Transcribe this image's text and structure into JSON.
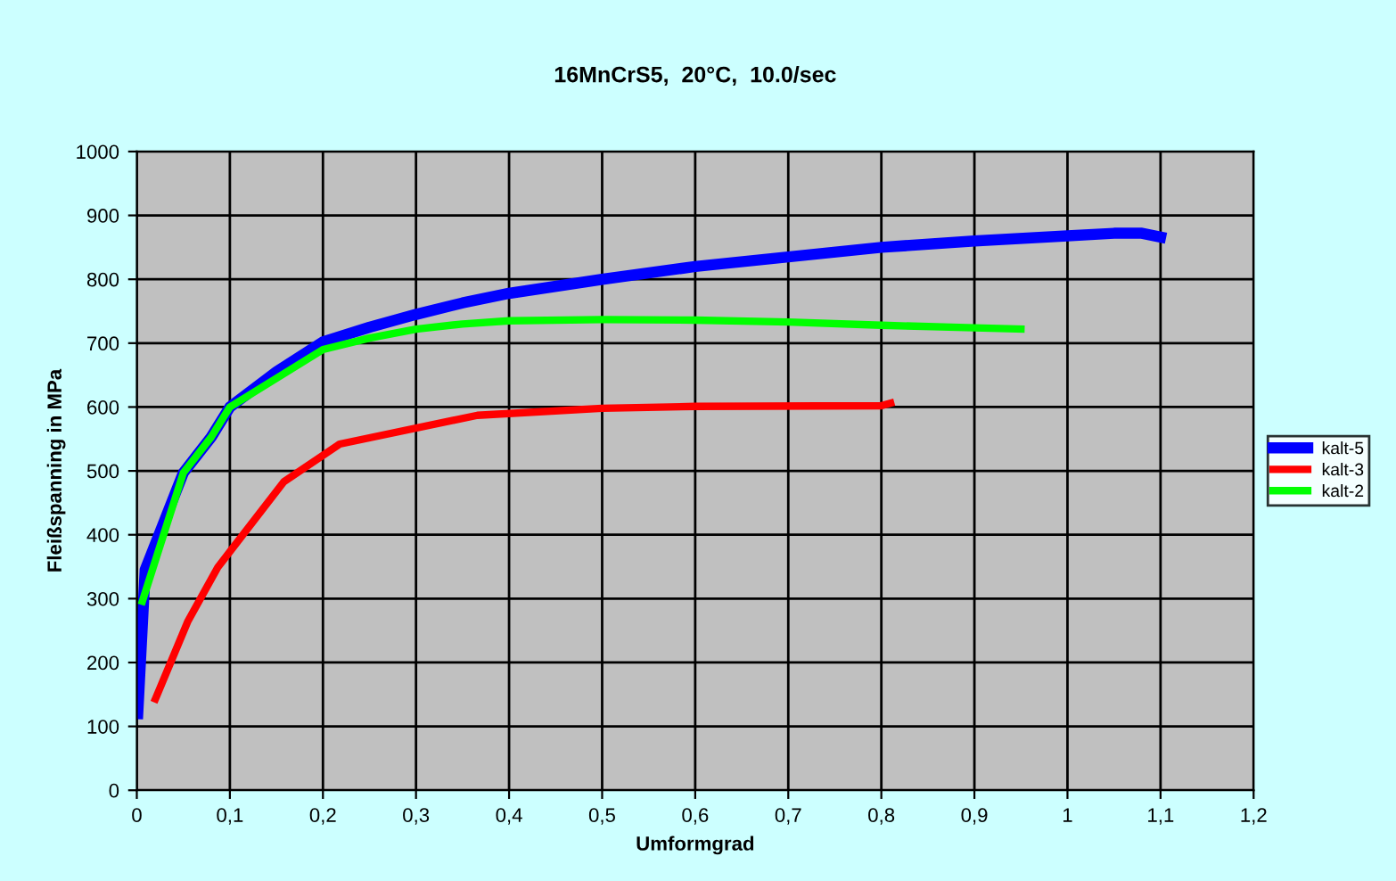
{
  "chart_data": {
    "type": "line",
    "title": "16MnCrS5,  20°C,  10.0/sec",
    "xlabel": "Umformgrad",
    "ylabel": "Fleißspanning in MPa",
    "xlim": [
      0,
      1.2
    ],
    "xticks": [
      {
        "value": 0,
        "label": "0"
      },
      {
        "value": 0.1,
        "label": "0,1"
      },
      {
        "value": 0.2,
        "label": "0,2"
      },
      {
        "value": 0.3,
        "label": "0,3"
      },
      {
        "value": 0.4,
        "label": "0,4"
      },
      {
        "value": 0.5,
        "label": "0,5"
      },
      {
        "value": 0.6,
        "label": "0,6"
      },
      {
        "value": 0.7,
        "label": "0,7"
      },
      {
        "value": 0.8,
        "label": "0,8"
      },
      {
        "value": 0.9,
        "label": "0,9"
      },
      {
        "value": 1,
        "label": "1"
      },
      {
        "value": 1.1,
        "label": "1,1"
      },
      {
        "value": 1.2,
        "label": "1,2"
      }
    ],
    "ylim": [
      0,
      1000
    ],
    "yticks": [
      0,
      100,
      200,
      300,
      400,
      500,
      600,
      700,
      800,
      900,
      1000
    ],
    "grid": true,
    "legend": "right",
    "marker": "none",
    "line_style": "solid",
    "series": [
      {
        "name": "kalt-5",
        "color": "#0000ff",
        "x": [
          0.001,
          0.009,
          0.05,
          0.08,
          0.1,
          0.15,
          0.2,
          0.25,
          0.3,
          0.35,
          0.4,
          0.5,
          0.6,
          0.7,
          0.8,
          0.9,
          1.0,
          1.05,
          1.08,
          1.1
        ],
        "values": [
          120,
          345,
          497,
          553,
          600,
          655,
          702,
          725,
          745,
          763,
          778,
          800,
          820,
          835,
          850,
          860,
          868,
          872,
          872,
          866
        ]
      },
      {
        "name": "kalt-3",
        "color": "#ff0000",
        "x": [
          0.02,
          0.055,
          0.087,
          0.158,
          0.218,
          0.366,
          0.5,
          0.6,
          0.8,
          0.81
        ],
        "values": [
          143,
          265,
          349,
          483,
          542,
          587,
          598,
          601,
          602,
          606
        ]
      },
      {
        "name": "kalt-2",
        "color": "#00ff00",
        "x": [
          0.006,
          0.05,
          0.08,
          0.1,
          0.15,
          0.2,
          0.25,
          0.3,
          0.35,
          0.4,
          0.5,
          0.6,
          0.7,
          0.8,
          0.9,
          0.95
        ],
        "values": [
          296,
          497,
          553,
          600,
          645,
          690,
          708,
          722,
          730,
          735,
          737,
          736,
          733,
          728,
          724,
          722
        ]
      }
    ]
  }
}
